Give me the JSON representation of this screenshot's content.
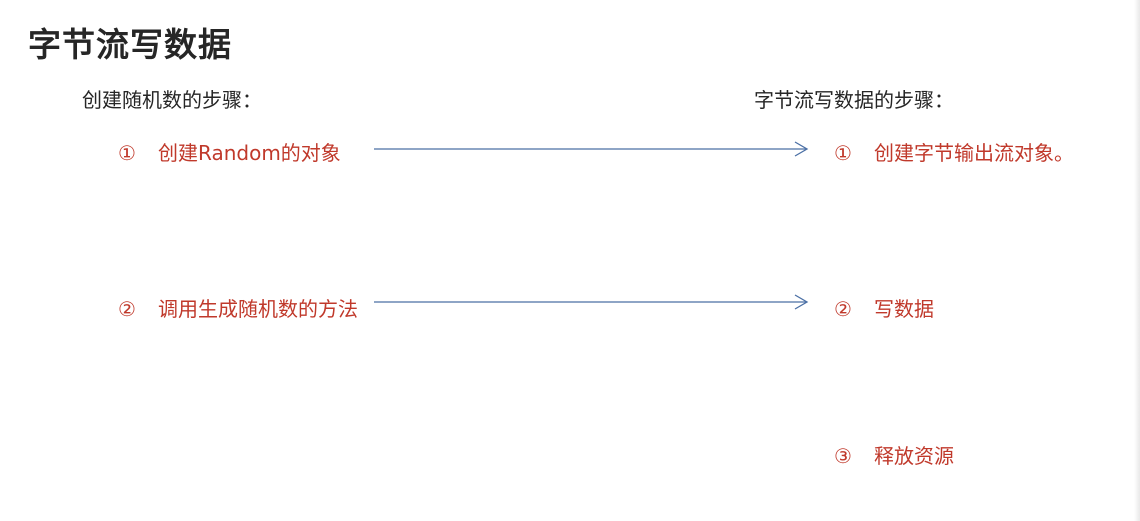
{
  "title": "字节流写数据",
  "left_column": {
    "heading": "创建随机数的步骤：",
    "steps": [
      {
        "num": "①",
        "text": "创建Random的对象"
      },
      {
        "num": "②",
        "text": "调用生成随机数的方法"
      }
    ]
  },
  "right_column": {
    "heading": "字节流写数据的步骤：",
    "steps": [
      {
        "num": "①",
        "text": "创建字节输出流对象。"
      },
      {
        "num": "②",
        "text": "写数据"
      },
      {
        "num": "③",
        "text": "释放资源"
      }
    ]
  },
  "colors": {
    "step_text": "#c0392b",
    "arrow": "#4a6fa5",
    "heading_text": "#262626"
  }
}
